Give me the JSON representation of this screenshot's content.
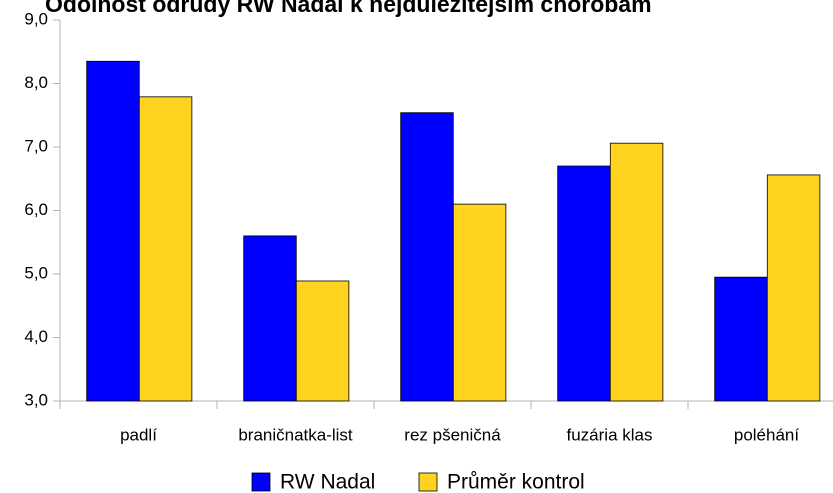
{
  "chart_data": {
    "type": "bar",
    "title": "Odolnost odrůdy  RW Nadal k nejdůležitějším chorobám",
    "categories": [
      "padlí",
      "braničnatka-list",
      "rez pšeničná",
      "fuzária klas",
      "poléhání"
    ],
    "series": [
      {
        "name": "RW Nadal",
        "color": "#0000ff",
        "values": [
          8.35,
          5.6,
          7.54,
          6.7,
          4.95
        ]
      },
      {
        "name": "Průměr kontrol",
        "color": "#ffd320",
        "values": [
          7.79,
          4.89,
          6.1,
          7.06,
          6.56
        ]
      }
    ],
    "ylim": [
      3,
      9
    ],
    "yticks": [
      {
        "value": 3,
        "label": "3,0"
      },
      {
        "value": 4,
        "label": "4,0"
      },
      {
        "value": 5,
        "label": "5,0"
      },
      {
        "value": 6,
        "label": "6,0"
      },
      {
        "value": 7,
        "label": "7,0"
      },
      {
        "value": 8,
        "label": "8,0"
      },
      {
        "value": 9,
        "label": "9,0"
      }
    ],
    "grid": false,
    "legend": "bottom"
  }
}
